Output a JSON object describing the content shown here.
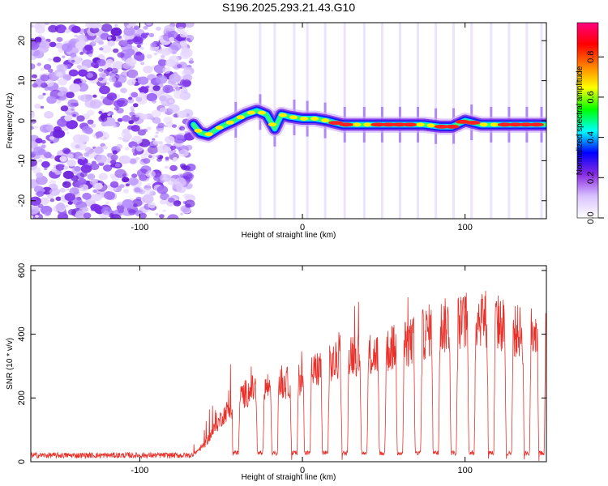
{
  "title": "S196.2025.293.21.43.G10",
  "chart_data": [
    {
      "type": "heatmap",
      "xlabel": "Height of straight line (km)",
      "ylabel": "Frequency (Hz)",
      "xlim": [
        -167,
        150
      ],
      "ylim": [
        -24.5,
        24.5
      ],
      "xticks": [
        -100,
        0,
        100
      ],
      "yticks": [
        -20,
        -10,
        0,
        10,
        20
      ],
      "colorbar": {
        "label": "Normalized spectral amplitude",
        "range": [
          0,
          0.97
        ],
        "ticks": [
          "0.0",
          "0.2",
          "0.4",
          "0.6",
          "0.8"
        ],
        "tick_values": [
          0.0,
          0.2,
          0.4,
          0.6,
          0.8
        ],
        "stops": [
          "#ffffff",
          "#d9c2ff",
          "#8a2be2",
          "#0000ff",
          "#00ffff",
          "#00ff00",
          "#ffff00",
          "#ff8000",
          "#ff0000",
          "#ff0080"
        ]
      },
      "noise_region_x": [
        -167,
        -68
      ],
      "ridge": {
        "x": [
          -67,
          -63,
          -58,
          -50,
          -42,
          -35,
          -28,
          -22,
          -17,
          -13,
          -8,
          0,
          8,
          15,
          25,
          35,
          45,
          55,
          65,
          75,
          85,
          92,
          100,
          110,
          120,
          130,
          140,
          149
        ],
        "y": [
          -1,
          -3,
          -3.5,
          -1.5,
          0,
          1.5,
          2.5,
          1.5,
          -2,
          1.5,
          1,
          0.5,
          0.5,
          0,
          -1,
          -1,
          -1,
          -1,
          -1,
          -1,
          -1.5,
          -1.5,
          0,
          -1,
          -1,
          -1,
          -1,
          -1
        ]
      }
    },
    {
      "type": "line",
      "xlabel": "Height of straight line (km)",
      "ylabel": "SNR (10 * v/v)",
      "xlim": [
        -167,
        150
      ],
      "ylim": [
        0,
        615
      ],
      "xticks": [
        -100,
        0,
        100
      ],
      "yticks": [
        0,
        200,
        400,
        600
      ],
      "color": "#e8312a",
      "baseline_noise": 20,
      "envelope": {
        "x": [
          -167,
          -68,
          -60,
          -50,
          -40,
          -30,
          -20,
          -10,
          0,
          10,
          20,
          28,
          40,
          50,
          60,
          70,
          80,
          90,
          100,
          110,
          120,
          130,
          140,
          150
        ],
        "y": [
          20,
          20,
          60,
          150,
          220,
          250,
          260,
          270,
          290,
          320,
          340,
          380,
          360,
          380,
          400,
          420,
          460,
          470,
          480,
          500,
          480,
          450,
          440,
          450
        ]
      },
      "dropouts_x": [
        -41,
        -26,
        -17,
        -5,
        3,
        14,
        26,
        38,
        49,
        60,
        71,
        82,
        93,
        104,
        116,
        127,
        138,
        147
      ]
    }
  ]
}
